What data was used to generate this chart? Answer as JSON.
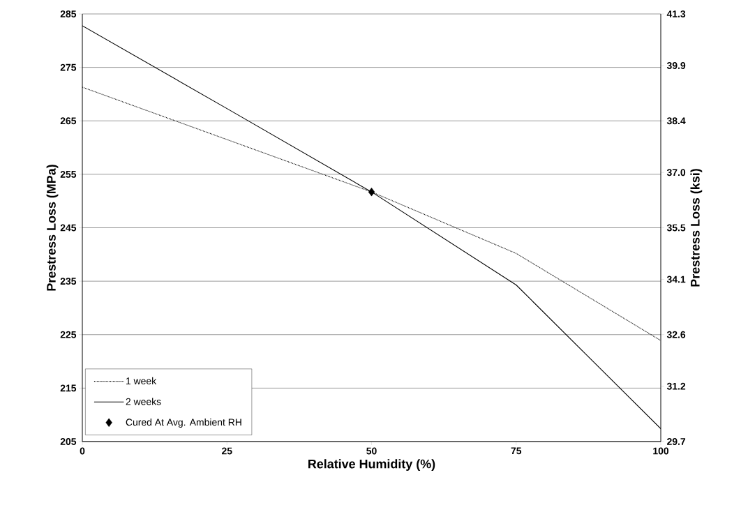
{
  "chart_data": {
    "type": "line",
    "xlabel": "Relative Humidity (%)",
    "ylabel": "Prestress Loss (MPa)",
    "y2label": "Prestress Loss (ksi)",
    "x": [
      0,
      25,
      50,
      75,
      100
    ],
    "series": [
      {
        "name": "1 week",
        "color": "#000000",
        "line_style": "dotted",
        "marker": "none",
        "values": [
          271.3,
          261.5,
          251.7,
          240.2,
          223.9
        ]
      },
      {
        "name": "2 weeks",
        "color": "#000000",
        "line_style": "solid",
        "marker": "none",
        "values": [
          282.8,
          267.3,
          251.7,
          234.3,
          207.4
        ]
      },
      {
        "name": "Cured At Avg. Ambient RH",
        "type": "scatter",
        "color": "#000000",
        "marker": "diamond",
        "x": [
          50
        ],
        "values": [
          251.7
        ]
      }
    ],
    "xlim": [
      0,
      100
    ],
    "xticks": [
      0,
      25,
      50,
      75,
      100
    ],
    "ylim": [
      205,
      285
    ],
    "yticks": [
      205,
      215,
      225,
      235,
      245,
      255,
      265,
      275,
      285
    ],
    "y2lim": [
      29.7,
      41.3
    ],
    "y2ticks": [
      29.7,
      31.2,
      32.6,
      34.1,
      35.5,
      {
        "value": 37,
        "label": "37.0"
      },
      38.4,
      39.9,
      41.3
    ],
    "grid": "y",
    "legend": "bottom left"
  }
}
